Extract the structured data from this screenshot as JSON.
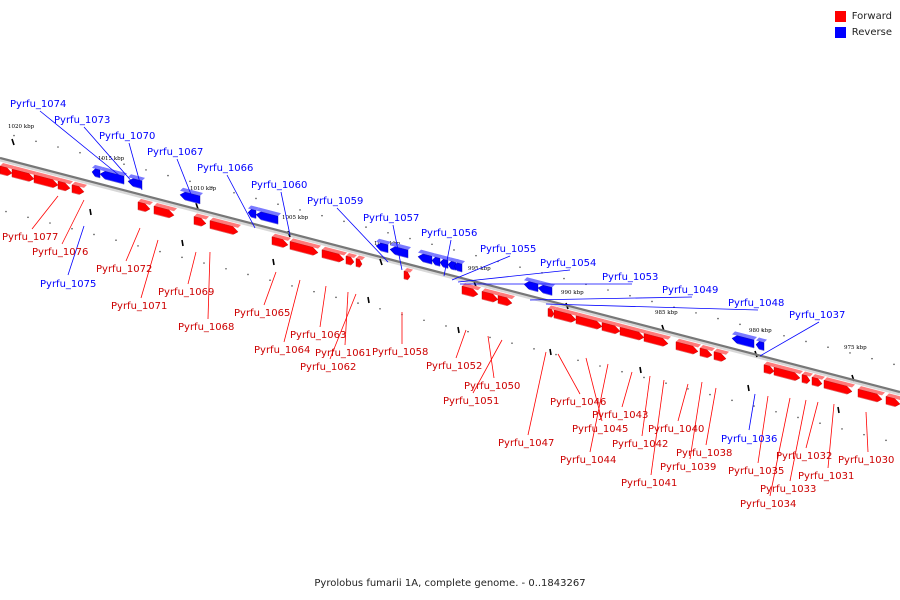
{
  "legend": {
    "forward_label": "Forward",
    "reverse_label": "Reverse",
    "forward_color": "#ff0000",
    "reverse_color": "#0000ff"
  },
  "caption": "Pyrolobus fumarii 1A, complete genome. - 0..1843267",
  "axis_ticks": [
    "1020 kbp",
    "1015 kbp",
    "1010 kbp",
    "1005 kbp",
    "1000 kbp",
    "995 kbp",
    "990 kbp",
    "985 kbp",
    "980 kbp",
    "975 kbp"
  ],
  "genes_reverse": [
    "Pyrfu_1074",
    "Pyrfu_1073",
    "Pyrfu_1070",
    "Pyrfu_1067",
    "Pyrfu_1066",
    "Pyrfu_1060",
    "Pyrfu_1059",
    "Pyrfu_1057",
    "Pyrfu_1056",
    "Pyrfu_1055",
    "Pyrfu_1054",
    "Pyrfu_1053",
    "Pyrfu_1049",
    "Pyrfu_1048",
    "Pyrfu_1037",
    "Pyrfu_1075",
    "Pyrfu_1036"
  ],
  "genes_forward": [
    "Pyrfu_1077",
    "Pyrfu_1076",
    "Pyrfu_1072",
    "Pyrfu_1071",
    "Pyrfu_1069",
    "Pyrfu_1068",
    "Pyrfu_1065",
    "Pyrfu_1064",
    "Pyrfu_1063",
    "Pyrfu_1061",
    "Pyrfu_1062",
    "Pyrfu_1058",
    "Pyrfu_1052",
    "Pyrfu_1050",
    "Pyrfu_1051",
    "Pyrfu_1046",
    "Pyrfu_1047",
    "Pyrfu_1045",
    "Pyrfu_1044",
    "Pyrfu_1043",
    "Pyrfu_1042",
    "Pyrfu_1041",
    "Pyrfu_1040",
    "Pyrfu_1039",
    "Pyrfu_1038",
    "Pyrfu_1035",
    "Pyrfu_1034",
    "Pyrfu_1033",
    "Pyrfu_1032",
    "Pyrfu_1031",
    "Pyrfu_1030"
  ]
}
